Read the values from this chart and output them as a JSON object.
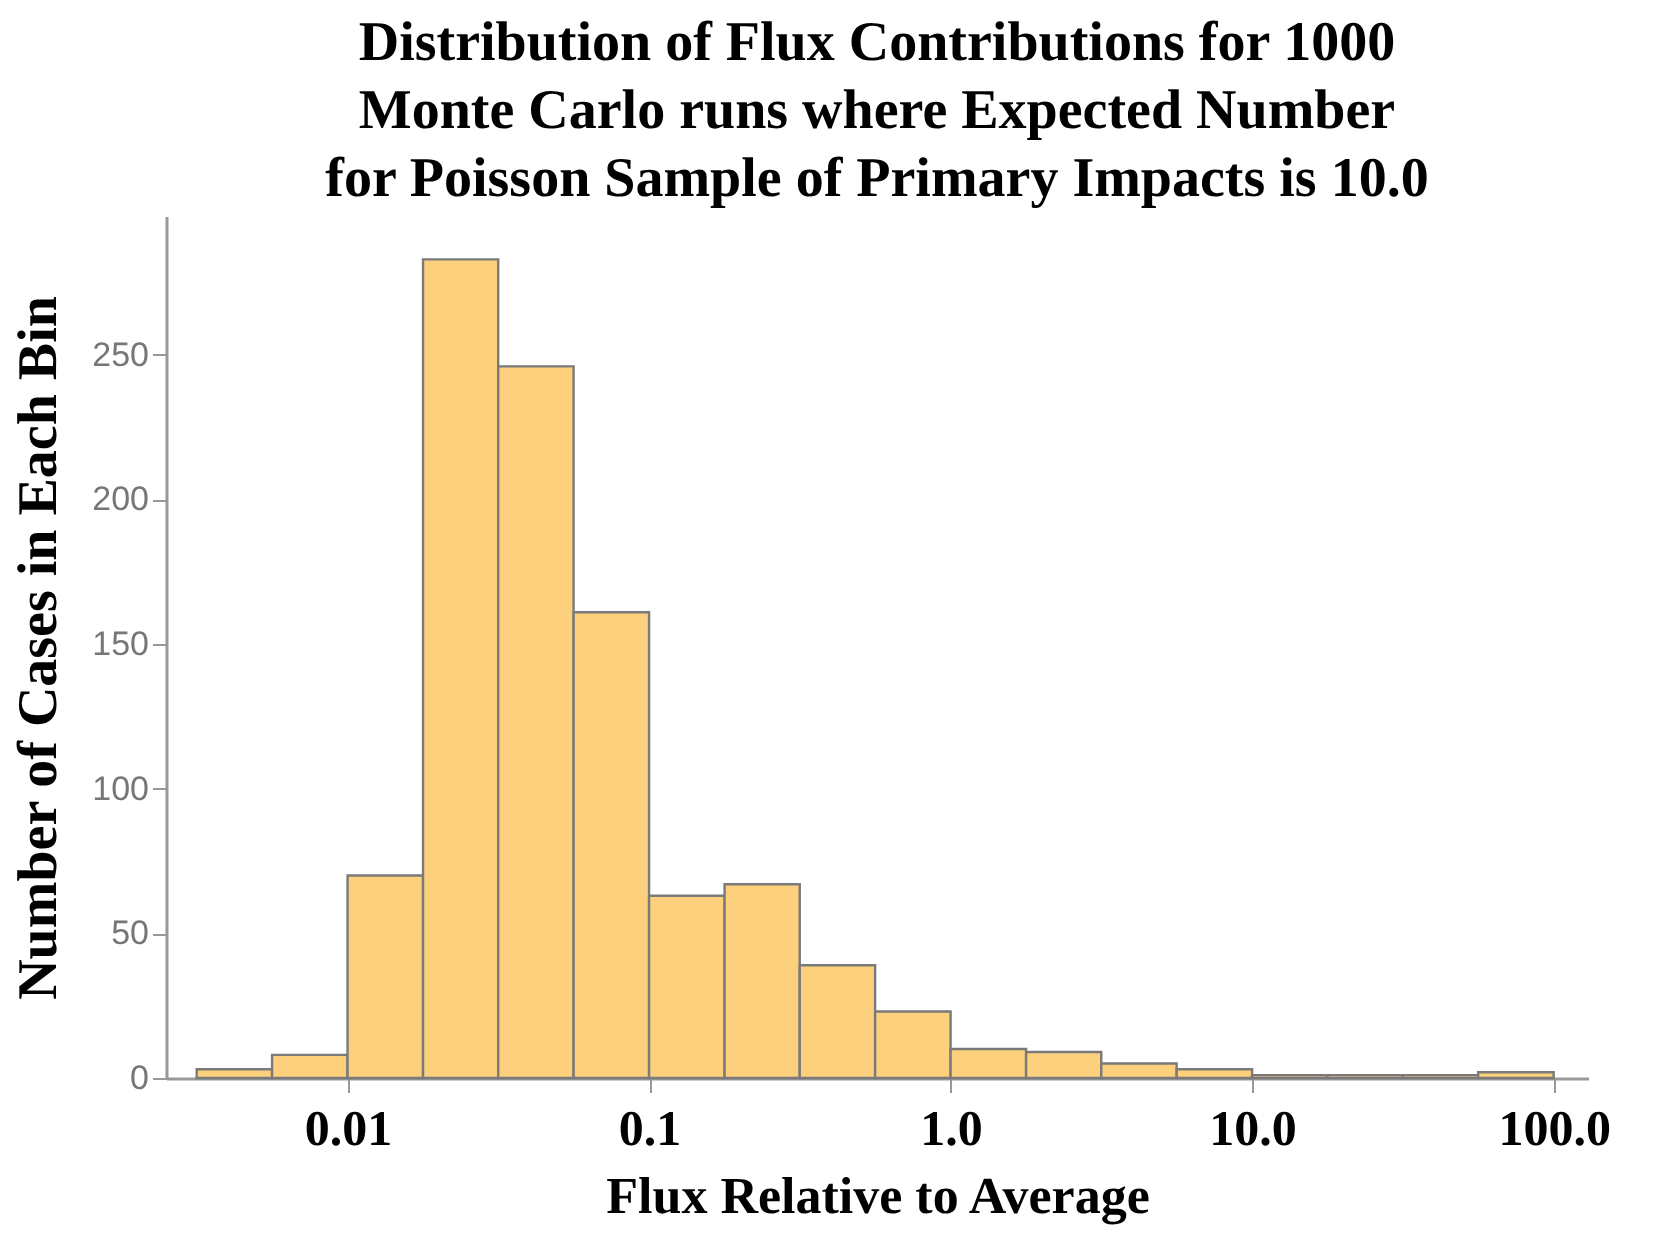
{
  "chart_data": {
    "type": "histogram",
    "title": "Distribution of Flux Contributions for 1000\nMonte Carlo runs where Expected Number\nfor Poisson Sample of Primary Impacts is 10.0",
    "xlabel": "Flux Relative to Average",
    "ylabel": "Number of Cases in Each Bin",
    "bins": [
      0.00316,
      0.00562,
      0.01,
      0.0178,
      0.0316,
      0.0562,
      0.1,
      0.178,
      0.316,
      0.562,
      1,
      1.78,
      3.16,
      5.62,
      10,
      17.8,
      31.6,
      56.2,
      100
    ],
    "values": [
      3,
      8,
      70,
      283,
      246,
      161,
      63,
      67,
      39,
      23,
      10,
      9,
      5,
      3,
      1,
      1,
      1,
      2
    ],
    "color": "#fdd07e",
    "log": "x",
    "xlim": [
      0.0025,
      130
    ],
    "ylim": [
      0,
      298
    ],
    "xticks": [
      0.01,
      0.1,
      {
        "value": 1,
        "label": "1.0"
      },
      {
        "value": 10,
        "label": "10.0"
      },
      {
        "value": 100,
        "label": "100.0"
      }
    ],
    "yticks": [
      0,
      50,
      100,
      150,
      200,
      250
    ]
  }
}
